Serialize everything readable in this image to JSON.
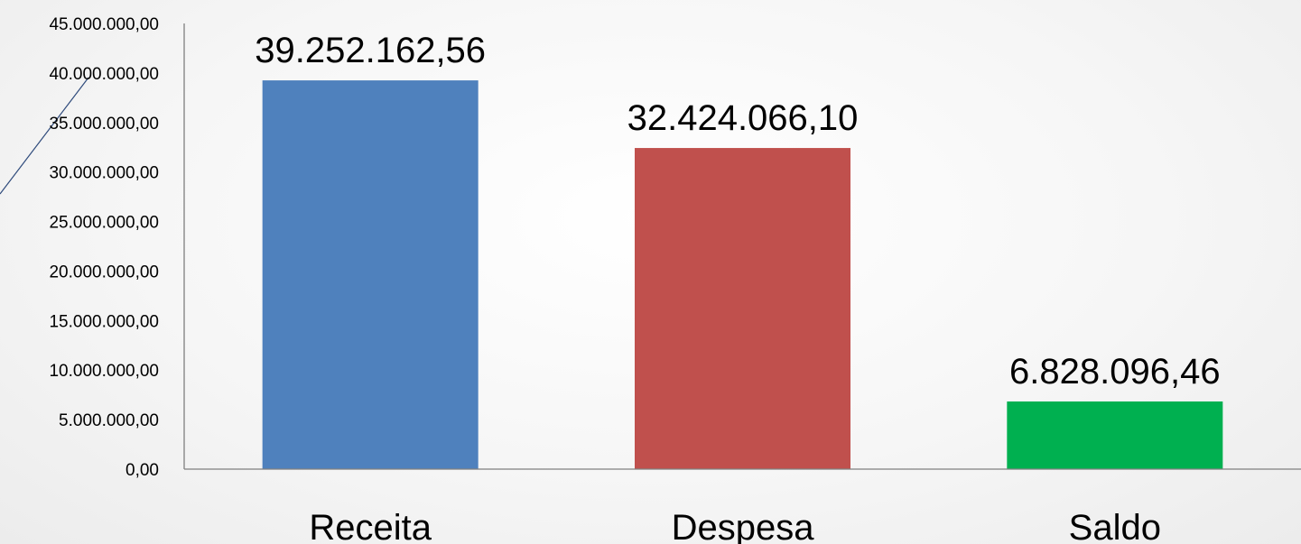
{
  "chart_data": {
    "type": "bar",
    "categories": [
      "Receita",
      "Despesa",
      "Saldo"
    ],
    "values": [
      39252162.56,
      32424066.1,
      6828096.46
    ],
    "data_labels": [
      "39.252.162,56",
      "32.424.066,10",
      "6.828.096,46"
    ],
    "colors": [
      "#4f81bd",
      "#c0504d",
      "#00b050"
    ],
    "ylim": [
      0,
      45000000
    ],
    "y_ticks": [
      0,
      5000000,
      10000000,
      15000000,
      20000000,
      25000000,
      30000000,
      35000000,
      40000000,
      45000000
    ],
    "y_tick_labels": [
      "0,00",
      "5.000.000,00",
      "10.000.000,00",
      "15.000.000,00",
      "20.000.000,00",
      "25.000.000,00",
      "30.000.000,00",
      "35.000.000,00",
      "40.000.000,00",
      "45.000.000,00"
    ],
    "title": "",
    "xlabel": "",
    "ylabel": "",
    "grid": false,
    "legend": "none"
  },
  "style": {
    "axis_color": "#7f7f7f",
    "decor_line_color": "#2f4b7c"
  }
}
